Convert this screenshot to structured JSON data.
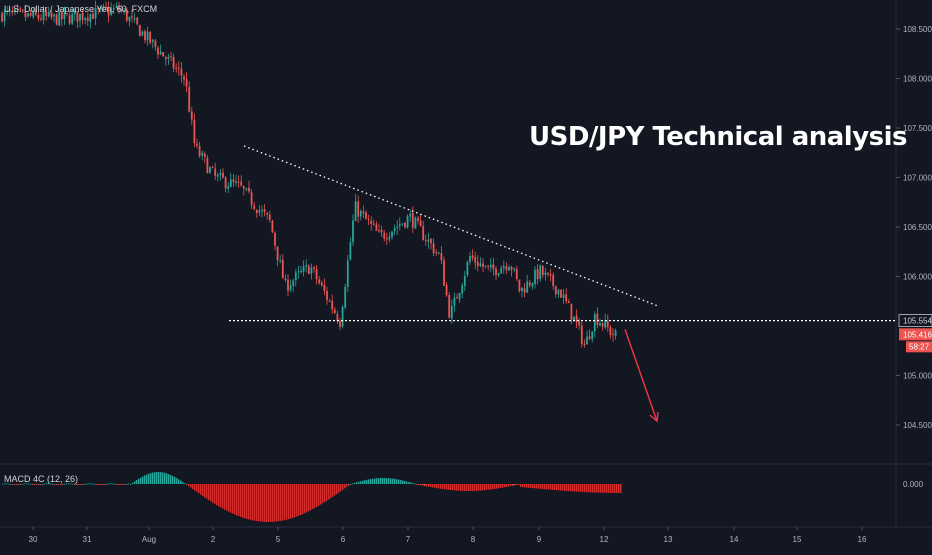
{
  "header": {
    "symbol": "U.S. Dollar / Japanese Yen, 60, FXCM"
  },
  "annotation": {
    "title": "USD/JPY Technical analysis"
  },
  "macd": {
    "label": "MACD 4C (12, 26)",
    "zero_label": "0.000"
  },
  "price_axis": {
    "ticks": [
      "108.500",
      "108.000",
      "107.500",
      "107.000",
      "106.500",
      "106.000",
      "105.000",
      "104.500"
    ],
    "tick_values": [
      108.5,
      108.0,
      107.5,
      107.0,
      106.5,
      106.0,
      105.0,
      104.5
    ],
    "support_label": "105.554",
    "support_value": 105.554,
    "last_label": "105.416",
    "last_value": 105.416,
    "countdown": "58:27"
  },
  "time_axis": {
    "ticks": [
      "30",
      "31",
      "Aug",
      "2",
      "5",
      "6",
      "7",
      "8",
      "9",
      "12",
      "13",
      "14",
      "15",
      "16"
    ]
  },
  "colors": {
    "up": "#26a69a",
    "down": "#ef5350",
    "bg": "#131722",
    "macd_up": "#26a69a",
    "macd_down": "#ef5350",
    "arrow": "#f23645"
  },
  "chart_data": {
    "type": "candlestick",
    "symbol": "USD/JPY",
    "timeframe": "60",
    "ylim": [
      104.2,
      108.75
    ],
    "trendlines": [
      {
        "name": "descending resistance",
        "from": {
          "x": "Aug 2",
          "y": 107.3
        },
        "to": {
          "x": "Aug 12",
          "y": 105.7
        }
      },
      {
        "name": "horizontal support",
        "y": 105.554
      }
    ],
    "projection": {
      "from": 105.416,
      "to": 104.6,
      "direction": "down"
    },
    "price_path": [
      {
        "t": "Jul 30",
        "p": 108.65
      },
      {
        "t": "Jul 31",
        "p": 108.6
      },
      {
        "t": "Aug 1",
        "p": 108.7
      },
      {
        "t": "Aug 1",
        "p": 108.0
      },
      {
        "t": "Aug 1",
        "p": 107.3
      },
      {
        "t": "Aug 2",
        "p": 107.0
      },
      {
        "t": "Aug 2",
        "p": 106.9
      },
      {
        "t": "Aug 2",
        "p": 106.55
      },
      {
        "t": "Aug 5",
        "p": 105.9
      },
      {
        "t": "Aug 5",
        "p": 106.1
      },
      {
        "t": "Aug 5",
        "p": 105.55
      },
      {
        "t": "Aug 6",
        "p": 106.7
      },
      {
        "t": "Aug 6",
        "p": 106.4
      },
      {
        "t": "Aug 6",
        "p": 106.6
      },
      {
        "t": "Aug 7",
        "p": 106.2
      },
      {
        "t": "Aug 7",
        "p": 105.6
      },
      {
        "t": "Aug 7",
        "p": 106.2
      },
      {
        "t": "Aug 8",
        "p": 106.05
      },
      {
        "t": "Aug 8",
        "p": 106.15
      },
      {
        "t": "Aug 8",
        "p": 105.85
      },
      {
        "t": "Aug 9",
        "p": 106.05
      },
      {
        "t": "Aug 9",
        "p": 105.85
      },
      {
        "t": "Aug 9",
        "p": 105.55
      },
      {
        "t": "Aug 12",
        "p": 105.3
      },
      {
        "t": "Aug 12",
        "p": 105.6
      },
      {
        "t": "Aug 12",
        "p": 105.4
      }
    ]
  }
}
